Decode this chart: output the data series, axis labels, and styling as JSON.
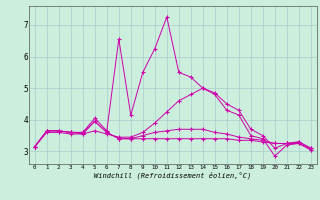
{
  "xlabel": "Windchill (Refroidissement éolien,°C)",
  "background_color": "#cceedd",
  "grid_color": "#aacccc",
  "line_color": "#cc00aa",
  "x_ticks": [
    0,
    1,
    2,
    3,
    4,
    5,
    6,
    7,
    8,
    9,
    10,
    11,
    12,
    13,
    14,
    15,
    16,
    17,
    18,
    19,
    20,
    21,
    22,
    23
  ],
  "y_ticks": [
    3,
    4,
    5,
    6,
    7
  ],
  "xlim": [
    -0.5,
    23.5
  ],
  "ylim": [
    2.6,
    7.6
  ],
  "series": [
    {
      "x": [
        0,
        1,
        2,
        3,
        4,
        5,
        6,
        7,
        8,
        9,
        10,
        11,
        12,
        13,
        14,
        15,
        16,
        17,
        18,
        19,
        20,
        21,
        22,
        23
      ],
      "y": [
        3.15,
        3.65,
        3.65,
        3.6,
        3.6,
        4.05,
        3.65,
        6.55,
        4.15,
        5.5,
        6.25,
        7.25,
        5.5,
        5.35,
        5.0,
        4.8,
        4.3,
        4.15,
        3.5,
        3.4,
        2.85,
        3.2,
        3.25,
        3.05
      ]
    },
    {
      "x": [
        0,
        1,
        2,
        3,
        4,
        5,
        6,
        7,
        8,
        9,
        10,
        11,
        12,
        13,
        14,
        15,
        16,
        17,
        18,
        19,
        20,
        21,
        22,
        23
      ],
      "y": [
        3.15,
        3.65,
        3.65,
        3.6,
        3.55,
        3.95,
        3.6,
        3.4,
        3.4,
        3.4,
        3.4,
        3.4,
        3.4,
        3.4,
        3.4,
        3.4,
        3.4,
        3.35,
        3.35,
        3.3,
        3.25,
        3.25,
        3.25,
        3.05
      ]
    },
    {
      "x": [
        0,
        1,
        2,
        3,
        4,
        5,
        6,
        7,
        8,
        9,
        10,
        11,
        12,
        13,
        14,
        15,
        16,
        17,
        18,
        19,
        20,
        21,
        22,
        23
      ],
      "y": [
        3.15,
        3.6,
        3.6,
        3.55,
        3.55,
        3.65,
        3.55,
        3.45,
        3.45,
        3.6,
        3.9,
        4.25,
        4.6,
        4.8,
        5.0,
        4.85,
        4.5,
        4.3,
        3.7,
        3.5,
        3.1,
        3.25,
        3.3,
        3.1
      ]
    },
    {
      "x": [
        0,
        1,
        2,
        3,
        4,
        5,
        6,
        7,
        8,
        9,
        10,
        11,
        12,
        13,
        14,
        15,
        16,
        17,
        18,
        19,
        20,
        21,
        22,
        23
      ],
      "y": [
        3.15,
        3.65,
        3.65,
        3.6,
        3.6,
        3.95,
        3.6,
        3.4,
        3.4,
        3.5,
        3.6,
        3.65,
        3.7,
        3.7,
        3.7,
        3.6,
        3.55,
        3.45,
        3.4,
        3.35,
        3.25,
        3.25,
        3.3,
        3.1
      ]
    }
  ]
}
